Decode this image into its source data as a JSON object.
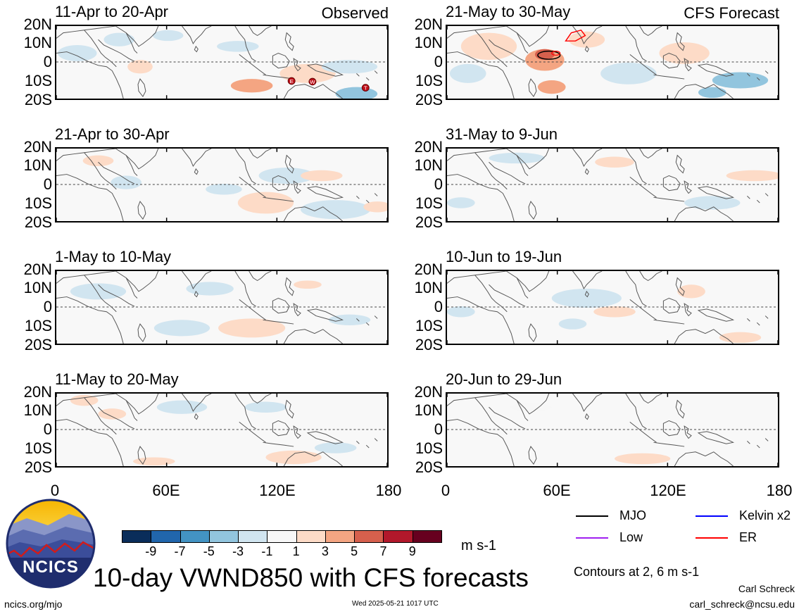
{
  "panels": [
    {
      "title": "11-Apr to 20-Apr",
      "label": "Observed"
    },
    {
      "title": "21-May to 30-May",
      "label": "CFS Forecast"
    },
    {
      "title": "21-Apr to 30-Apr",
      "label": ""
    },
    {
      "title": "31-May to 9-Jun",
      "label": ""
    },
    {
      "title": "1-May to 10-May",
      "label": ""
    },
    {
      "title": "10-Jun to 19-Jun",
      "label": ""
    },
    {
      "title": "11-May to 20-May",
      "label": ""
    },
    {
      "title": "20-Jun to 29-Jun",
      "label": ""
    }
  ],
  "lat_labels": [
    "20N",
    "10N",
    "0",
    "10S",
    "20S"
  ],
  "lon_labels": [
    "0",
    "60E",
    "120E",
    "180"
  ],
  "storm_markers": [
    "E",
    "W",
    "T"
  ],
  "colorbar": {
    "labels": [
      "-9",
      "-7",
      "-5",
      "-3",
      "-1",
      "1",
      "3",
      "5",
      "7",
      "9"
    ],
    "colors": [
      "#0a2d5a",
      "#2166ac",
      "#4393c3",
      "#92c5de",
      "#d1e5f0",
      "#f7f7f7",
      "#fddbc7",
      "#f4a582",
      "#d6604d",
      "#b2182b",
      "#67001f"
    ],
    "unit": "m s-1"
  },
  "legend": [
    {
      "label": "MJO",
      "color": "#000000"
    },
    {
      "label": "Kelvin x2",
      "color": "#0000ff"
    },
    {
      "label": "Low",
      "color": "#a020f0"
    },
    {
      "label": "ER",
      "color": "#ff0000"
    }
  ],
  "contours_note": "Contours at 2, 6 m s-1",
  "main_title": "10-day VWND850 with CFS forecasts",
  "logo_text": "NCICS",
  "footer": {
    "url": "ncics.org/mjo",
    "timestamp": "Wed 2025-05-21 1017 UTC",
    "author": "Carl Schreck",
    "email": "carl_schreck@ncsu.edu"
  }
}
